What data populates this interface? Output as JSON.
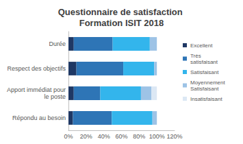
{
  "chart_data": {
    "type": "bar",
    "title": "Questionnaire de satisfaction Formation ISIT 2018",
    "orientation": "horizontal",
    "stacked": true,
    "categories": [
      "Durée",
      "Respect des objectifs",
      "Apport immédiat pour le poste",
      "Répondu au besoin"
    ],
    "series": [
      {
        "name": "Excellent",
        "color": "#1f3864",
        "values": [
          6,
          9,
          6,
          5
        ]
      },
      {
        "name": "Très satisfaisant",
        "color": "#2e75b6",
        "values": [
          44,
          53,
          30,
          44
        ]
      },
      {
        "name": "Satisfaisant",
        "color": "#33b5ec",
        "values": [
          42,
          35,
          46,
          46
        ]
      },
      {
        "name": "Moyennement Satisfaisant",
        "color": "#9dc3e6",
        "values": [
          8,
          3,
          12,
          5
        ]
      },
      {
        "name": "Insatisfaisant",
        "color": "#dce8f4",
        "values": [
          0,
          0,
          6,
          0
        ]
      }
    ],
    "xlim": [
      0,
      120
    ],
    "xticks": [
      {
        "value": 0,
        "label": "0%"
      },
      {
        "value": 20,
        "label": "20%"
      },
      {
        "value": 40,
        "label": "40%"
      },
      {
        "value": 60,
        "label": "60%"
      },
      {
        "value": 80,
        "label": "80%"
      },
      {
        "value": 100,
        "label": "100%"
      },
      {
        "value": 120,
        "label": "120%"
      }
    ],
    "grid": false,
    "legend": "right"
  }
}
